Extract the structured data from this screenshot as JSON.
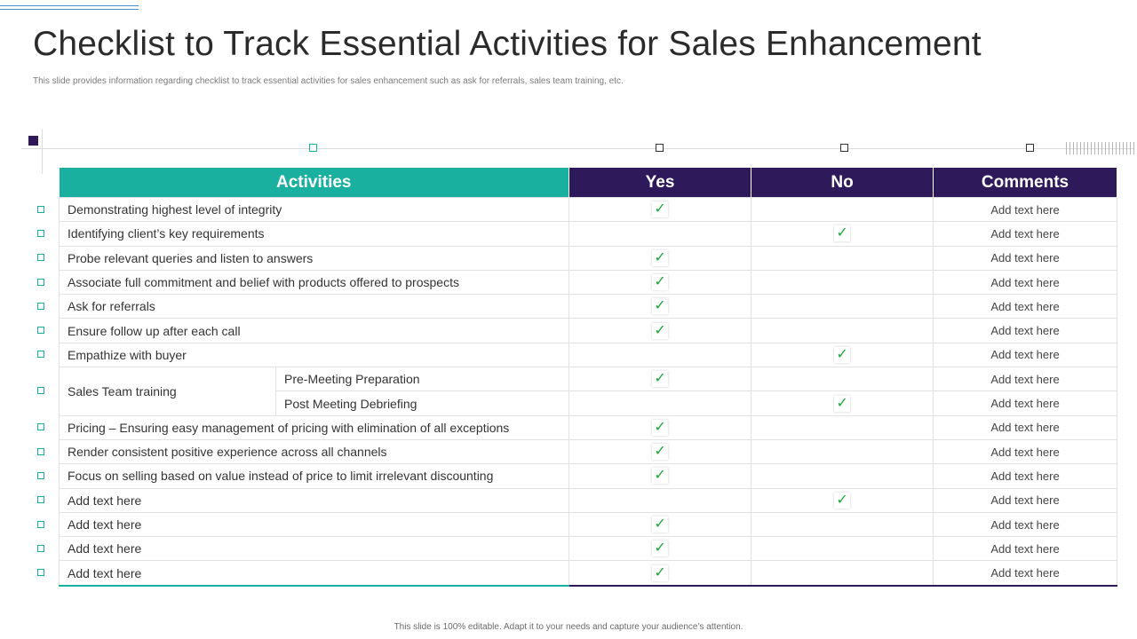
{
  "slide": {
    "title": "Checklist to Track Essential Activities for Sales Enhancement",
    "subtitle": "This slide provides information regarding checklist to track essential activities for sales enhancement such as ask for referrals, sales team training, etc.",
    "footer": "This slide is 100% editable. Adapt it to your needs and capture your audience’s attention."
  },
  "colors": {
    "teal": "#1ab0a0",
    "purple": "#2e1a5a",
    "check": "#1fa83a"
  },
  "table": {
    "headers": {
      "activities": "Activities",
      "yes": "Yes",
      "no": "No",
      "comments": "Comments"
    },
    "check_icon": "✓",
    "rows": [
      {
        "activity": "Demonstrating highest level of integrity",
        "answer": "yes",
        "comment": "Add text here"
      },
      {
        "activity": "Identifying client’s key requirements",
        "answer": "no",
        "comment": "Add text here"
      },
      {
        "activity": "Probe relevant queries and listen to answers",
        "answer": "yes",
        "comment": "Add text here"
      },
      {
        "activity": "Associate full commitment  and belief with products offered to prospects",
        "answer": "yes",
        "comment": "Add text here"
      },
      {
        "activity": "Ask for referrals",
        "answer": "yes",
        "comment": "Add text here"
      },
      {
        "activity": "Ensure follow up after each call",
        "answer": "yes",
        "comment": "Add text here"
      },
      {
        "activity": "Empathize with buyer",
        "answer": "no",
        "comment": "Add text here"
      },
      {
        "activity": "Sales Team training",
        "sub": "Pre-Meeting Preparation",
        "answer": "yes",
        "comment": "Add text here"
      },
      {
        "activity": "Sales Team training",
        "sub": "Post Meeting Debriefing",
        "answer": "no",
        "comment": "Add text here"
      },
      {
        "activity": "Pricing – Ensuring easy management of pricing with elimination of all exceptions",
        "answer": "yes",
        "comment": "Add text here"
      },
      {
        "activity": "Render consistent positive experience across all channels",
        "answer": "yes",
        "comment": "Add text here"
      },
      {
        "activity": "Focus on selling based on value instead of price to limit  irrelevant discounting",
        "answer": "yes",
        "comment": "Add text here"
      },
      {
        "activity": "Add text here",
        "answer": "no",
        "comment": "Add text here"
      },
      {
        "activity": "Add text here",
        "answer": "yes",
        "comment": "Add text here"
      },
      {
        "activity": "Add text here",
        "answer": "yes",
        "comment": "Add text here"
      },
      {
        "activity": "Add text here",
        "answer": "yes",
        "comment": "Add text here"
      }
    ]
  }
}
